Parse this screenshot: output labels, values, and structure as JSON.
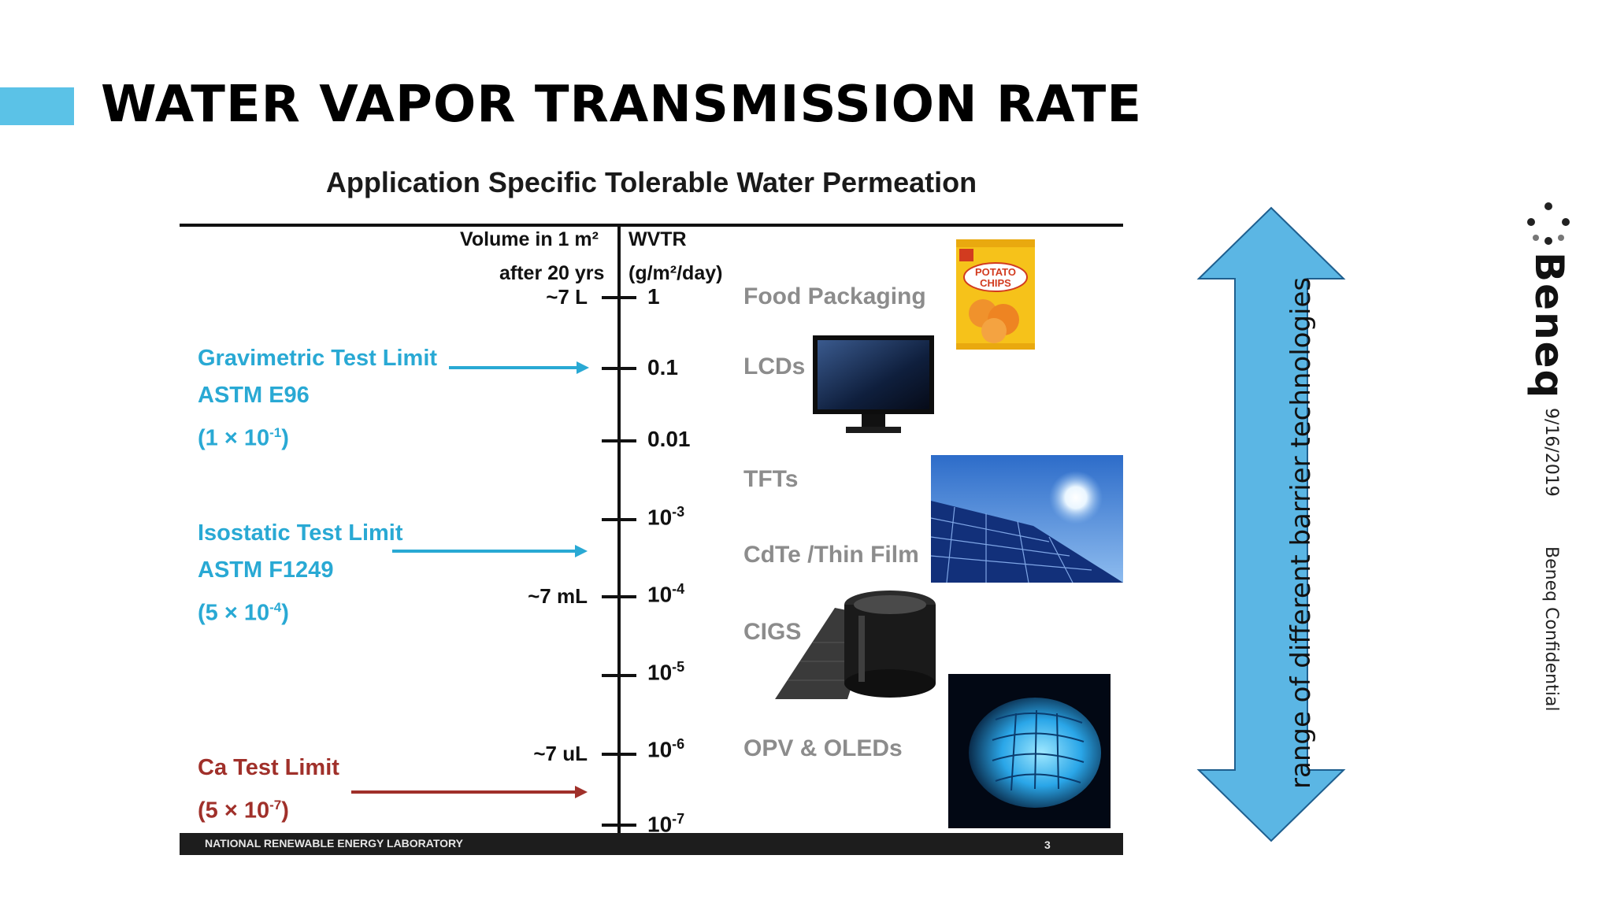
{
  "slide": {
    "title": "WATER VAPOR TRANSMISSION RATE",
    "side_date": "9/16/2019",
    "side_confidential": "Beneq Confidential",
    "logo_text": "Beneq",
    "range_caption": "range of different barrier technologies"
  },
  "figure": {
    "title": "Application Specific Tolerable Water Permeation",
    "header_volume_line1": "Volume in 1 m²",
    "header_volume_line2": "after 20 yrs",
    "header_wvtr_line1": "WVTR",
    "header_wvtr_line2": "(g/m²/day)",
    "ticks": [
      {
        "base": "1",
        "exp": ""
      },
      {
        "base": "0.1",
        "exp": ""
      },
      {
        "base": "0.01",
        "exp": ""
      },
      {
        "base": "10",
        "exp": "-3"
      },
      {
        "base": "10",
        "exp": "-4"
      },
      {
        "base": "10",
        "exp": "-5"
      },
      {
        "base": "10",
        "exp": "-6"
      },
      {
        "base": "10",
        "exp": "-7"
      }
    ],
    "volumes": [
      "~7 L",
      "~7 mL",
      "~7 uL"
    ],
    "applications": [
      "Food Packaging",
      "LCDs",
      "TFTs",
      "CdTe /Thin Film",
      "CIGS",
      "OPV & OLEDs"
    ],
    "limits": {
      "gravimetric": {
        "name": "Gravimetric Test Limit",
        "standard": "ASTM E96",
        "value_prefix": "(1 × 10",
        "value_exp": "-1",
        "value_suffix": ")"
      },
      "isostatic": {
        "name": "Isostatic Test Limit",
        "standard": "ASTM F1249",
        "value_prefix": "(5 × 10",
        "value_exp": "-4",
        "value_suffix": ")"
      },
      "calcium": {
        "name": "Ca Test Limit",
        "value_prefix": "(5 × 10",
        "value_exp": "-7",
        "value_suffix": ")"
      }
    },
    "potato_chips_label_1": "POTATO",
    "potato_chips_label_2": "CHIPS",
    "footer": "NATIONAL RENEWABLE ENERGY LABORATORY",
    "page_number": "3"
  },
  "colors": {
    "accent": "#5bc2e7",
    "limit_blue": "#29a9d4",
    "limit_red": "#a0302a",
    "application_gray": "#8c8c8c"
  },
  "icons": [
    "potato-chips-bag-icon",
    "lcd-monitor-icon",
    "solar-panel-icon",
    "cigs-roll-icon",
    "oled-glow-icon",
    "double-arrow-icon",
    "beneq-logo-icon"
  ]
}
